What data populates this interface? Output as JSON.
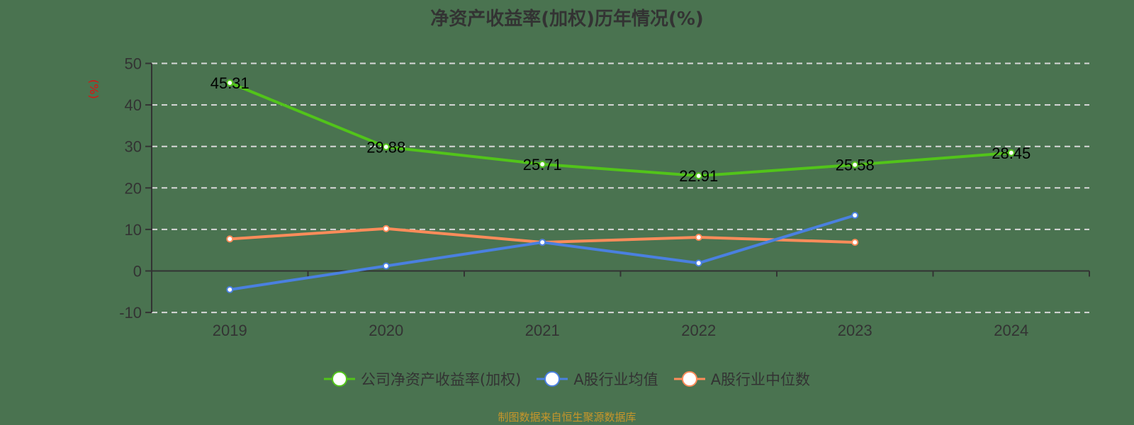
{
  "title": "净资产收益率(加权)历年情况(%)",
  "footer": "制图数据来自恒生聚源数据库",
  "colors": {
    "background": "#4a7350",
    "company": "#52c41a",
    "industry_avg": "#4a80e0",
    "industry_median": "#ff8c5a",
    "ylabel": "#e01010",
    "footer": "#c8962a"
  },
  "legend": [
    {
      "label": "公司净资产收益率(加权)",
      "color": "#52c41a"
    },
    {
      "label": "A股行业均值",
      "color": "#4a80e0"
    },
    {
      "label": "A股行业中位数",
      "color": "#ff8c5a"
    }
  ],
  "chart_data": {
    "type": "line",
    "title": "净资产收益率(加权)历年情况(%)",
    "xlabel": "",
    "ylabel": "(%)",
    "categories": [
      "2019",
      "2020",
      "2021",
      "2022",
      "2023",
      "2024"
    ],
    "ylim": [
      -10,
      50
    ],
    "yticks": [
      -10,
      0,
      10,
      20,
      30,
      40,
      50
    ],
    "grid": true,
    "legend_position": "bottom",
    "series": [
      {
        "name": "公司净资产收益率(加权)",
        "values": [
          45.31,
          29.88,
          25.71,
          22.91,
          25.58,
          28.45
        ],
        "labels": [
          "45.31",
          "29.88",
          "25.71",
          "22.91",
          "25.58",
          "28.45"
        ]
      },
      {
        "name": "A股行业均值",
        "values": [
          -4.5,
          1.2,
          6.9,
          1.9,
          13.4,
          null
        ]
      },
      {
        "name": "A股行业中位数",
        "values": [
          7.7,
          10.2,
          6.9,
          8.1,
          6.9,
          null
        ]
      }
    ]
  }
}
